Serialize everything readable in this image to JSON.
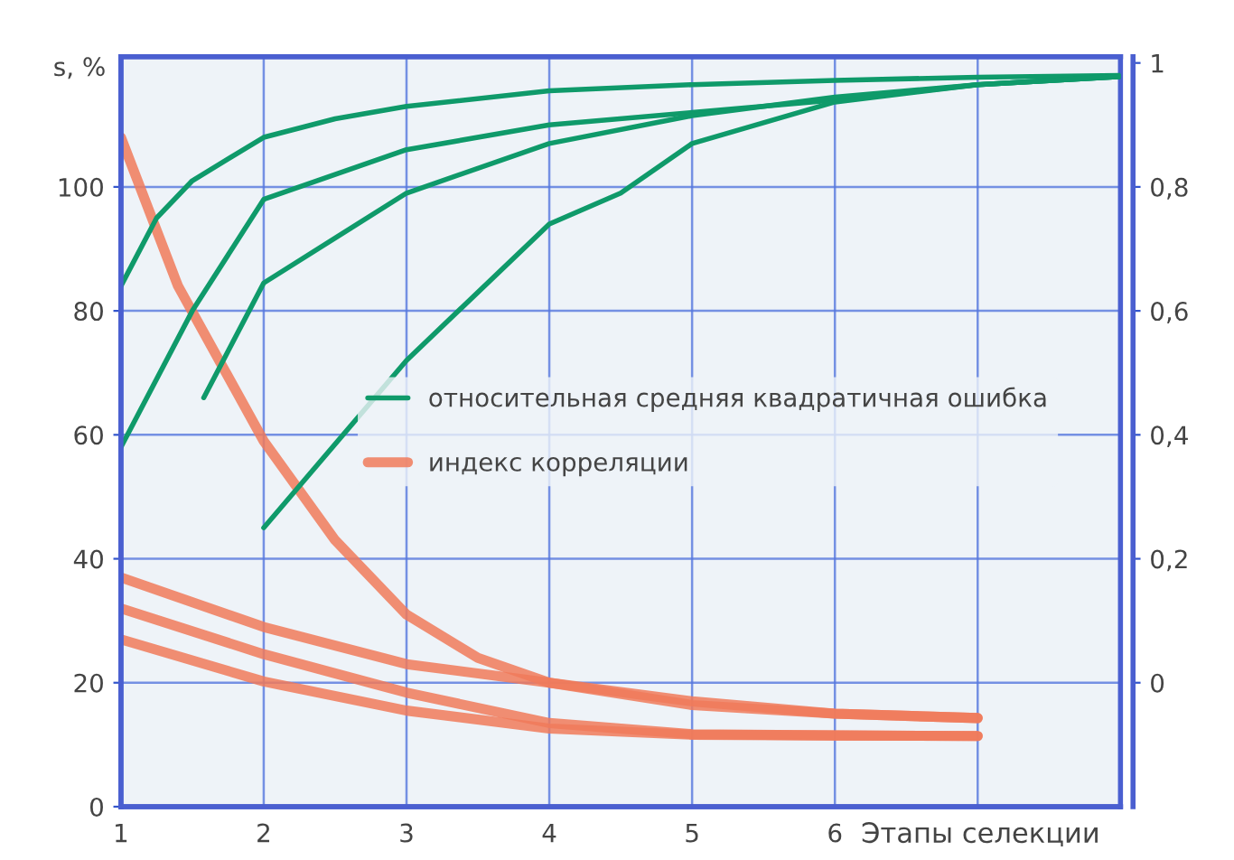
{
  "chart_data": {
    "type": "line",
    "xlabel": "Этапы селекции",
    "ylabel": "s, %",
    "xlim": [
      1,
      8
    ],
    "xticks": [
      1,
      2,
      3,
      4,
      5,
      6,
      {
        "value": 7,
        "label": null
      }
    ],
    "ylim": [
      0,
      121
    ],
    "yticks": [
      0,
      20,
      40,
      60,
      80,
      100
    ],
    "y2lim": [
      -0.2,
      1.01
    ],
    "y2ticks": [
      {
        "value": 0,
        "label": "0"
      },
      {
        "value": 0.2,
        "label": "0,2"
      },
      {
        "value": 0.4,
        "label": "0,4"
      },
      {
        "value": 0.6,
        "label": "0,6"
      },
      {
        "value": 0.8,
        "label": "0,8"
      },
      {
        "value": 1,
        "label": "1"
      }
    ],
    "grid": true,
    "legend": "center right",
    "line_style": "solid",
    "marker": "none",
    "series": [
      {
        "name": "относительная средняя квадратичная ошибка",
        "color": "#0f9a6a",
        "axis": "y2",
        "x": [
          1,
          1.25,
          1.5,
          2,
          2.5,
          3,
          4,
          5,
          6,
          7,
          8
        ],
        "values": [
          0.64,
          0.75,
          0.81,
          0.88,
          0.91,
          0.93,
          0.955,
          0.965,
          0.972,
          0.977,
          0.98
        ]
      },
      {
        "color": "#0f9a6a",
        "axis": "y2",
        "x": [
          1,
          1.5,
          2,
          3,
          4,
          5,
          6,
          7,
          8
        ],
        "values": [
          0.38,
          0.6,
          0.78,
          0.86,
          0.9,
          0.92,
          0.94,
          0.965,
          0.978
        ]
      },
      {
        "color": "#0f9a6a",
        "axis": "y2",
        "x": [
          1.58,
          2,
          3,
          4,
          5,
          6,
          7,
          8
        ],
        "values": [
          0.46,
          0.645,
          0.79,
          0.87,
          0.915,
          0.945,
          0.965,
          0.978
        ]
      },
      {
        "color": "#0f9a6a",
        "axis": "y2",
        "x": [
          2,
          3,
          4,
          4.5,
          5,
          6,
          7,
          8
        ],
        "values": [
          0.25,
          0.52,
          0.74,
          0.79,
          0.87,
          0.937,
          0.965,
          0.978
        ]
      },
      {
        "name": "индекс корреляции",
        "color": "#f07a5a",
        "x": [
          1,
          1.4,
          2,
          2.5,
          3,
          3.5,
          4,
          5,
          6,
          7
        ],
        "values": [
          108,
          84,
          59,
          43,
          31,
          24,
          20,
          17,
          15,
          14.3
        ]
      },
      {
        "color": "#f07a5a",
        "x": [
          1,
          2,
          3,
          4,
          5,
          6,
          7
        ],
        "values": [
          37,
          29,
          23,
          20,
          16.4,
          15,
          14.3
        ]
      },
      {
        "color": "#f07a5a",
        "x": [
          1,
          2,
          3,
          4,
          5,
          6,
          7
        ],
        "values": [
          32,
          24.6,
          18.4,
          13.5,
          11.7,
          11.5,
          11.4
        ]
      },
      {
        "color": "#f07a5a",
        "x": [
          1,
          2,
          3,
          4,
          5,
          6,
          7
        ],
        "values": [
          27,
          20.2,
          15.5,
          12.6,
          11.6,
          11.5,
          11.4
        ]
      }
    ]
  }
}
